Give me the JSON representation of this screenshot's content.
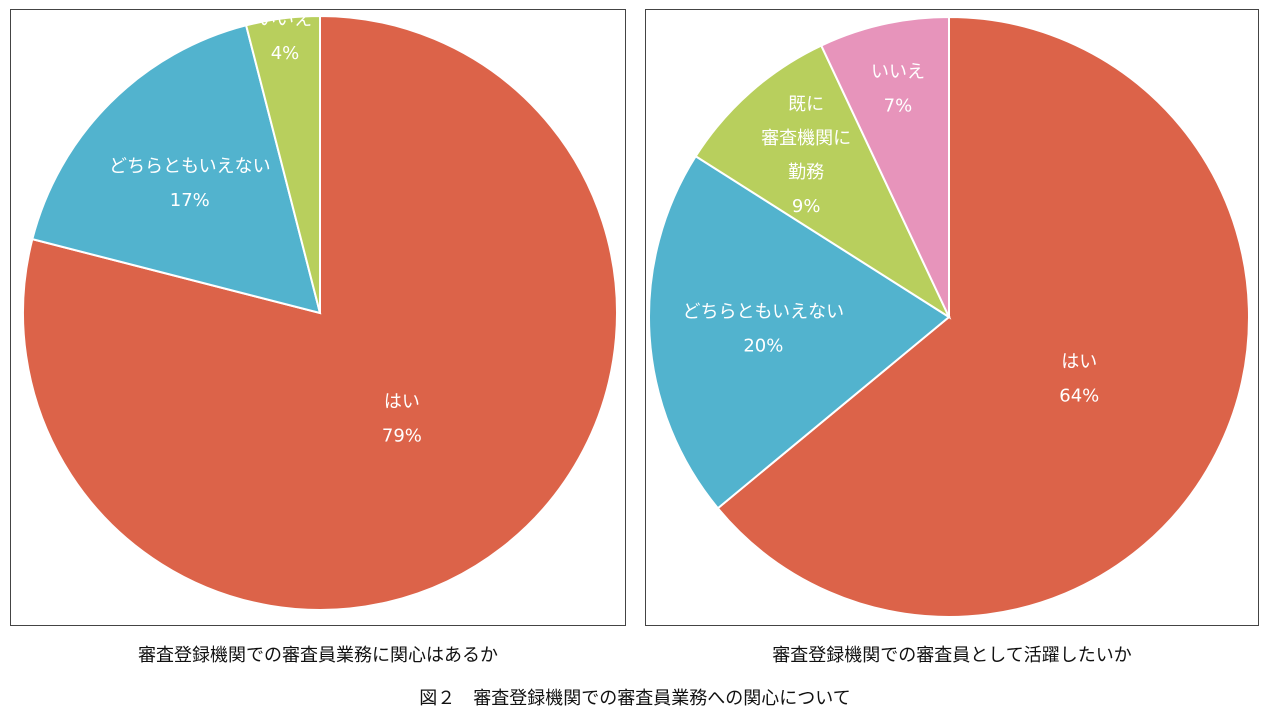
{
  "chart_data": [
    {
      "type": "pie",
      "title": "審査登録機関での審査員業務に関心はあるか",
      "start_angle_deg": 90,
      "direction": "clockwise",
      "slices": [
        {
          "label": [
            "はい"
          ],
          "percent_label": "79%",
          "value": 79,
          "color": "#dc6349"
        },
        {
          "label": [
            "どちらともいえない"
          ],
          "percent_label": "17%",
          "value": 17,
          "color": "#52b3ce"
        },
        {
          "label": [
            "いいえ"
          ],
          "percent_label": "4%",
          "value": 4,
          "color": "#b8cf5d"
        }
      ]
    },
    {
      "type": "pie",
      "title": "審査登録機関での審査員として活躍したいか",
      "start_angle_deg": 90,
      "direction": "clockwise",
      "slices": [
        {
          "label": [
            "はい"
          ],
          "percent_label": "64%",
          "value": 64,
          "color": "#dc6349"
        },
        {
          "label": [
            "どちらともいえない"
          ],
          "percent_label": "20%",
          "value": 20,
          "color": "#52b3ce"
        },
        {
          "label": [
            "既に",
            "審査機関に",
            "勤務"
          ],
          "percent_label": "9%",
          "value": 9,
          "color": "#b8cf5d"
        },
        {
          "label": [
            "いいえ"
          ],
          "percent_label": "7%",
          "value": 7,
          "color": "#e794bb"
        }
      ]
    }
  ],
  "figure_caption": "図２　審査登録機関での審査員業務への関心について"
}
